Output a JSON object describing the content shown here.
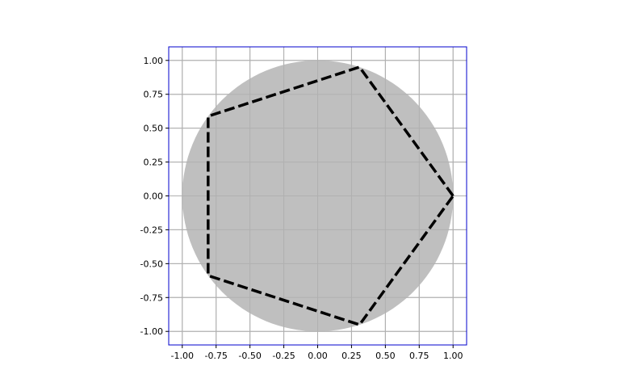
{
  "chart_data": {
    "type": "scatter",
    "title": "",
    "xlabel": "",
    "ylabel": "",
    "xlim": [
      -1.1,
      1.1
    ],
    "ylim": [
      -1.1,
      1.1
    ],
    "grid": true,
    "aspect": "equal",
    "x_ticks": [
      -1.0,
      -0.75,
      -0.5,
      -0.25,
      0.0,
      0.25,
      0.5,
      0.75,
      1.0
    ],
    "y_ticks": [
      -1.0,
      -0.75,
      -0.5,
      -0.25,
      0.0,
      0.25,
      0.5,
      0.75,
      1.0
    ],
    "x_tick_labels": [
      "-1.00",
      "-0.75",
      "-0.50",
      "-0.25",
      "0.00",
      "0.25",
      "0.50",
      "0.75",
      "1.00"
    ],
    "y_tick_labels": [
      "-1.00",
      "-0.75",
      "-0.50",
      "-0.25",
      "0.00",
      "0.25",
      "0.50",
      "0.75",
      "1.00"
    ],
    "circle": {
      "center": [
        0.0,
        0.0
      ],
      "radius": 1.0,
      "fill": "#bfbfbf"
    },
    "polygon": {
      "style": "dashed",
      "color": "#000000",
      "points": [
        [
          1.0,
          0.0
        ],
        [
          0.309,
          0.951
        ],
        [
          -0.809,
          0.588
        ],
        [
          -0.809,
          -0.588
        ],
        [
          0.309,
          -0.951
        ]
      ]
    },
    "colors": {
      "frame": "#0000cc",
      "grid": "#b0b0b0",
      "polygon": "#000000",
      "circle_fill": "#bfbfbf"
    }
  }
}
